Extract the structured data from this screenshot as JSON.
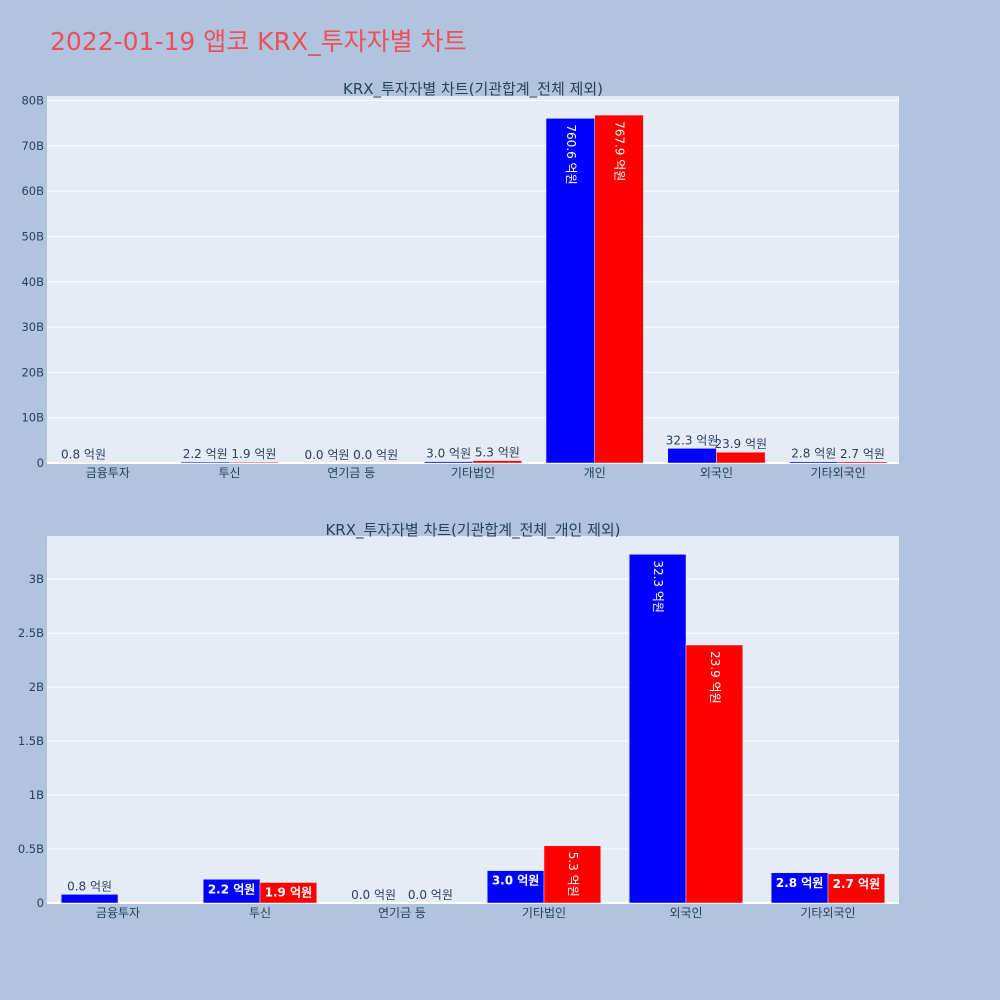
{
  "page": {
    "title": "2022-01-19 앱코 KRX_투자자별 차트"
  },
  "colors": {
    "background": "#b0c4de",
    "plot_bg": "#e5ecf6",
    "title": "#ef4e5b",
    "series_a": "#0000ff",
    "series_b": "#ff0000"
  },
  "chart_data": [
    {
      "type": "bar",
      "title": "KRX_투자자별 차트(기관합계_전체 제외)",
      "categories": [
        "금융투자",
        "투신",
        "연기금 등",
        "기타법인",
        "개인",
        "외국인",
        "기타외국인"
      ],
      "series": [
        {
          "color": "#0000ff",
          "values": [
            80000000,
            220000000,
            0,
            300000000,
            76060000000,
            3230000000,
            280000000
          ],
          "labels": [
            "0.8 억원",
            "2.2 억원",
            "0.0 억원",
            "3.0 억원",
            "760.6 억원",
            "32.3 억원",
            "2.8 억원"
          ]
        },
        {
          "color": "#ff0000",
          "values": [
            0,
            190000000,
            0,
            530000000,
            76790000000,
            2390000000,
            270000000
          ],
          "labels": [
            "",
            "1.9 억원",
            "0.0 억원",
            "5.3 억원",
            "767.9 억원",
            "23.9 억원",
            "2.7 억원"
          ]
        }
      ],
      "ylim": [
        0,
        81000000000
      ],
      "yticks": [
        0,
        10000000000,
        20000000000,
        30000000000,
        40000000000,
        50000000000,
        60000000000,
        70000000000,
        80000000000
      ],
      "ytick_labels": [
        "0",
        "10B",
        "20B",
        "30B",
        "40B",
        "50B",
        "60B",
        "70B",
        "80B"
      ],
      "grid": true
    },
    {
      "type": "bar",
      "title": "KRX_투자자별 차트(기관합계_전체_개인 제외)",
      "categories": [
        "금융투자",
        "투신",
        "연기금 등",
        "기타법인",
        "외국인",
        "기타외국인"
      ],
      "series": [
        {
          "color": "#0000ff",
          "values": [
            80000000,
            220000000,
            0,
            300000000,
            3230000000,
            280000000
          ],
          "labels": [
            "0.8 억원",
            "2.2 억원",
            "0.0 억원",
            "3.0 억원",
            "32.3 억원",
            "2.8 억원"
          ]
        },
        {
          "color": "#ff0000",
          "values": [
            0,
            190000000,
            0,
            530000000,
            2390000000,
            270000000
          ],
          "labels": [
            "",
            "1.9 억원",
            "0.0 억원",
            "5.3 억원",
            "23.9 억원",
            "2.7 억원"
          ]
        }
      ],
      "ylim": [
        0,
        3400000000
      ],
      "yticks": [
        0,
        500000000,
        1000000000,
        1500000000,
        2000000000,
        2500000000,
        3000000000
      ],
      "ytick_labels": [
        "0",
        "0.5B",
        "1B",
        "1.5B",
        "2B",
        "2.5B",
        "3B"
      ],
      "grid": true
    }
  ]
}
